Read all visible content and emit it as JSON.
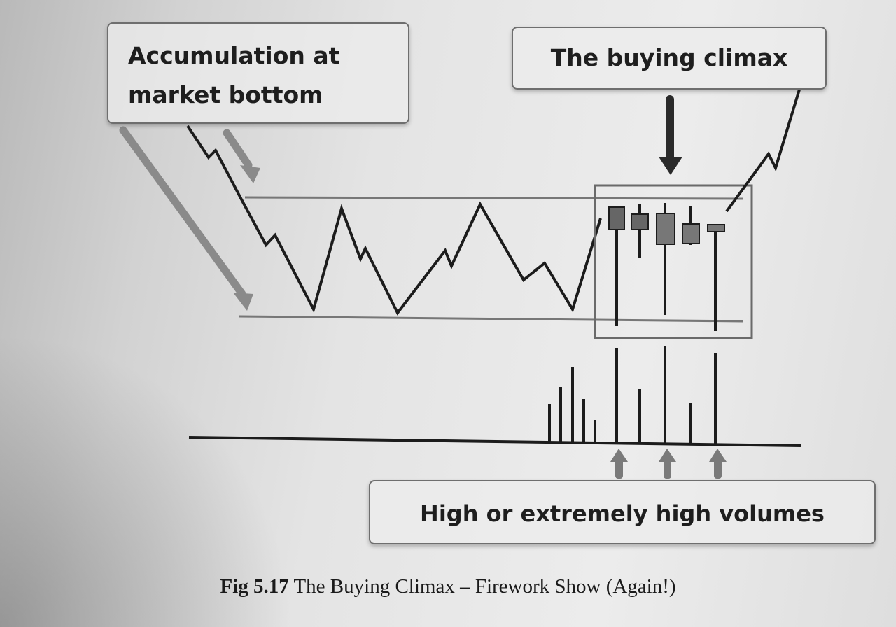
{
  "callouts": {
    "accumulation_line1": "Accumulation at",
    "accumulation_line2": "market bottom",
    "buying_climax": "The buying climax",
    "volumes": "High or extremely high volumes"
  },
  "caption": {
    "label": "Fig 5.17",
    "text": "The Buying Climax – Firework Show (Again!)"
  }
}
